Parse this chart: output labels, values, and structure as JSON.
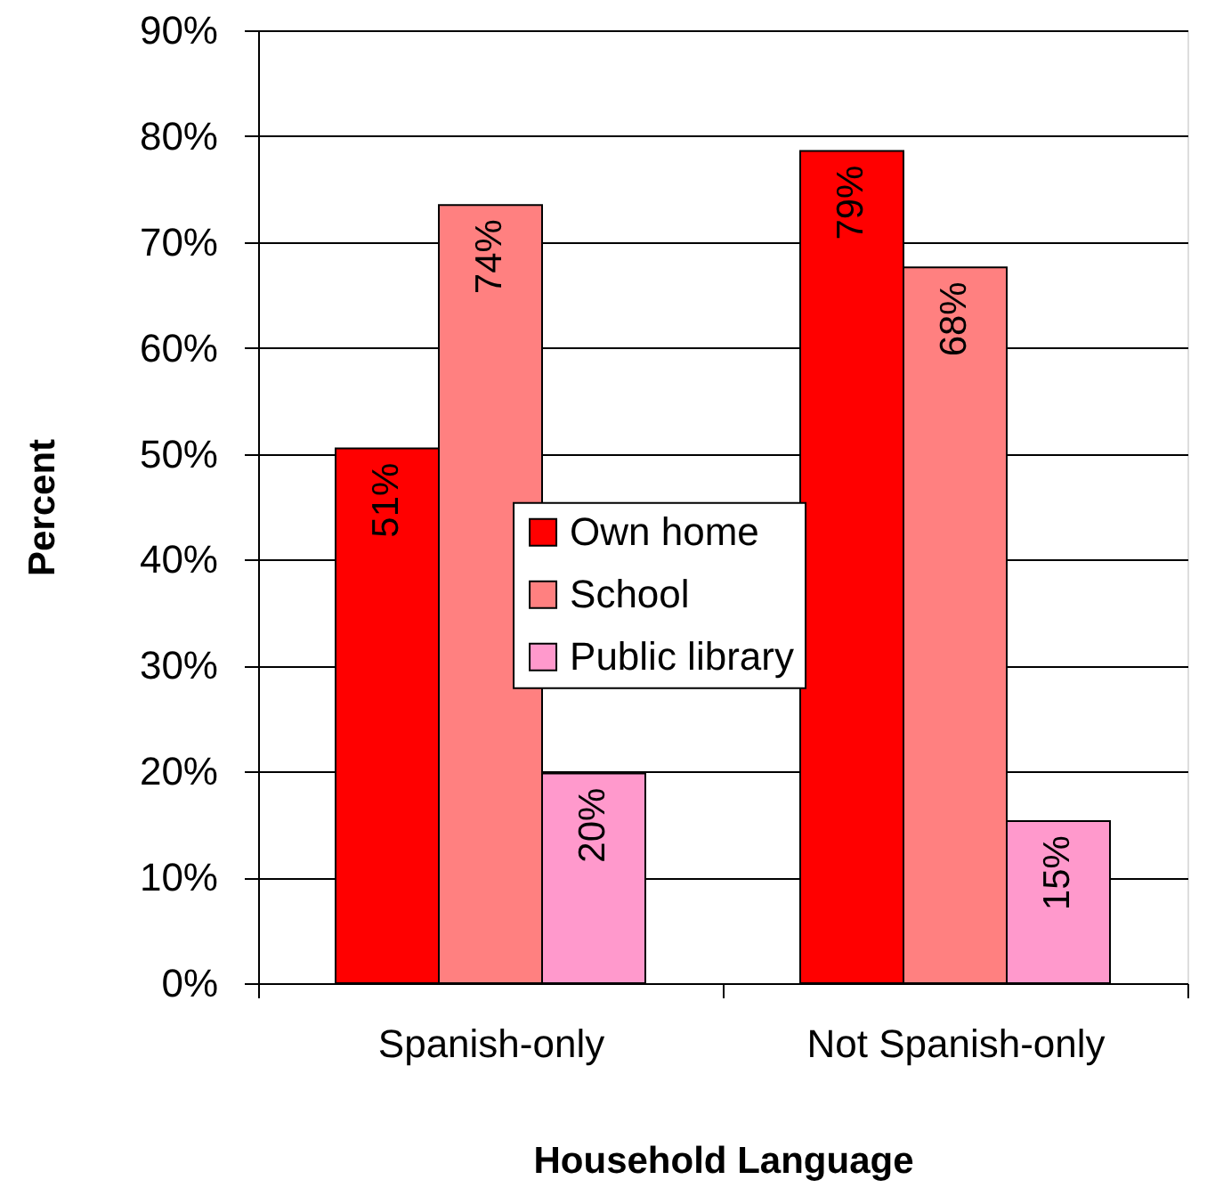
{
  "chart_data": {
    "type": "bar",
    "xlabel": "Household Language",
    "ylabel": "Percent",
    "categories": [
      "Spanish-only",
      "Not Spanish-only"
    ],
    "series": [
      {
        "name": "Own home",
        "color": "#ff0000",
        "values": [
          50.5,
          78.6
        ],
        "value_labels": [
          "51%",
          "79%"
        ]
      },
      {
        "name": "School",
        "color": "#ff8080",
        "values": [
          73.5,
          67.6
        ],
        "value_labels": [
          "74%",
          "68%"
        ]
      },
      {
        "name": "Public library",
        "color": "#ff99cc",
        "values": [
          19.8,
          15.3
        ],
        "value_labels": [
          "20%",
          "15%"
        ]
      }
    ],
    "ylim": [
      0,
      90
    ],
    "yticks": [
      {
        "value": 0,
        "label": "0%"
      },
      {
        "value": 10,
        "label": "10%"
      },
      {
        "value": 20,
        "label": "20%"
      },
      {
        "value": 30,
        "label": "30%"
      },
      {
        "value": 40,
        "label": "40%"
      },
      {
        "value": 50,
        "label": "50%"
      },
      {
        "value": 60,
        "label": "60%"
      },
      {
        "value": 70,
        "label": "70%"
      },
      {
        "value": 80,
        "label": "80%"
      },
      {
        "value": 90,
        "label": "90%"
      }
    ],
    "grid": "y",
    "legend": "center"
  }
}
